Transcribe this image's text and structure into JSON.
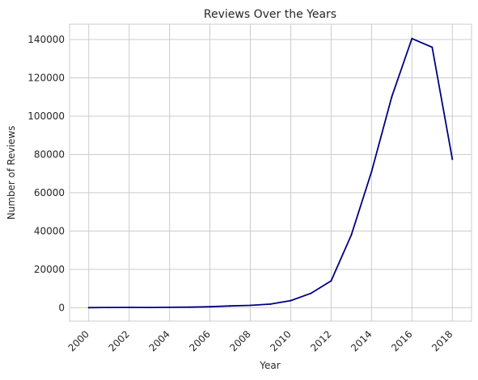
{
  "chart_data": {
    "type": "line",
    "title": "Reviews Over the Years",
    "xlabel": "Year",
    "ylabel": "Number of Reviews",
    "x": [
      2000,
      2001,
      2002,
      2003,
      2004,
      2005,
      2006,
      2007,
      2008,
      2009,
      2010,
      2011,
      2012,
      2013,
      2014,
      2015,
      2016,
      2017,
      2018
    ],
    "series": [
      {
        "name": "",
        "values": [
          50,
          100,
          150,
          120,
          200,
          300,
          500,
          900,
          1200,
          1900,
          3700,
          7500,
          14000,
          38000,
          71000,
          110000,
          140500,
          136000,
          77500
        ]
      }
    ],
    "xticks": [
      "2000",
      "2002",
      "2004",
      "2006",
      "2008",
      "2010",
      "2012",
      "2014",
      "2016",
      "2018"
    ],
    "yticks": [
      "0",
      "20000",
      "40000",
      "60000",
      "80000",
      "100000",
      "120000",
      "140000"
    ],
    "xlim": [
      1999.05,
      2018.95
    ],
    "ylim": [
      -7000,
      148000
    ],
    "grid": true,
    "line_color": "#000080",
    "grid_color": "#cccccc"
  }
}
